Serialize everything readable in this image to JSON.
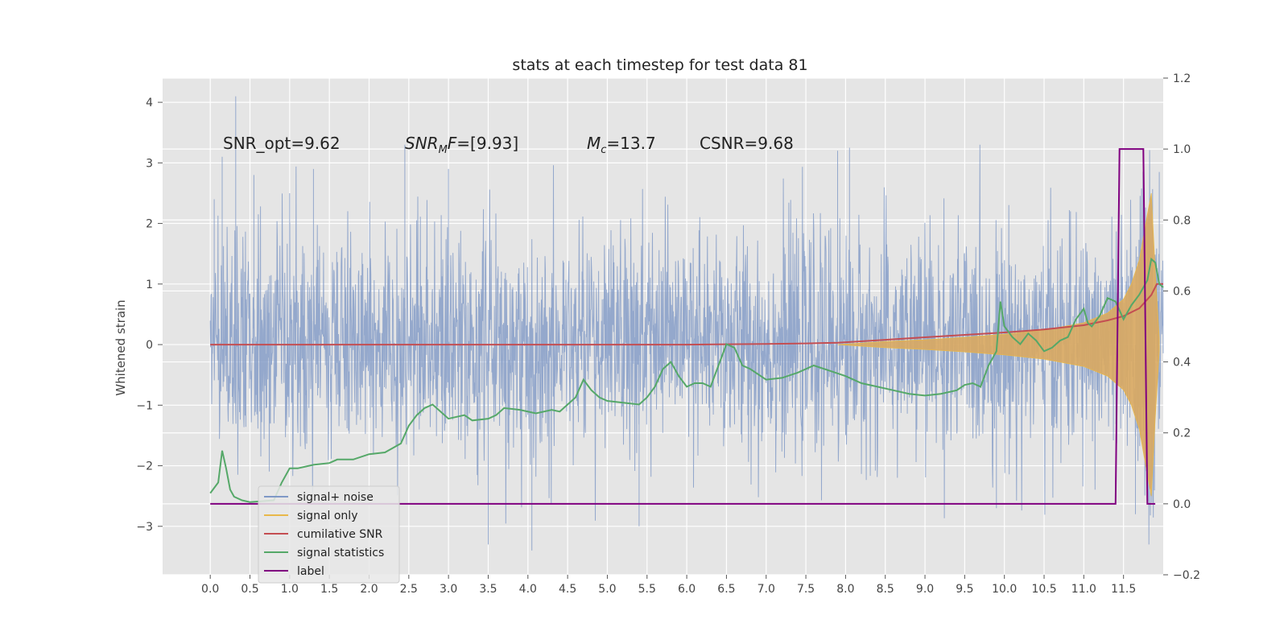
{
  "chart_data": {
    "type": "line",
    "title": "stats at each timestep for test data 81",
    "ylabel": "Whitened strain",
    "xlabel": "",
    "xlim": [
      -0.6,
      12.0
    ],
    "ylim": [
      -3.8,
      4.4
    ],
    "y2lim": [
      -0.2,
      1.2
    ],
    "xticks": [
      "0.0",
      "0.5",
      "1.0",
      "1.5",
      "2.0",
      "2.5",
      "3.0",
      "3.5",
      "4.0",
      "4.5",
      "5.0",
      "5.5",
      "6.0",
      "6.5",
      "7.0",
      "7.5",
      "8.0",
      "8.5",
      "9.0",
      "9.5",
      "10.0",
      "10.5",
      "11.0",
      "11.5"
    ],
    "yticks": [
      "4",
      "3",
      "2",
      "1",
      "0",
      "−1",
      "−2",
      "−3"
    ],
    "y2ticks": [
      "1.2",
      "1.0",
      "0.8",
      "0.6",
      "0.4",
      "0.2",
      "0.0",
      "−0.2"
    ],
    "grid": true,
    "legend_position": "lower-left",
    "annotations": [
      {
        "text": "SNR_opt=9.62",
        "italic": false
      },
      {
        "text": "SNR_MF=[9.93]",
        "italic": true
      },
      {
        "text": "M_c=13.7",
        "italic": true
      },
      {
        "text": "CSNR=9.68",
        "italic": false
      }
    ],
    "series": [
      {
        "name": "signal+ noise",
        "color": "#7f99c6",
        "axis": "left",
        "x_range": [
          0,
          12.0
        ],
        "typical_band": [
          -1.0,
          1.0
        ],
        "peaks": [
          [
            0.05,
            2.4
          ],
          [
            0.15,
            3.1
          ],
          [
            0.32,
            4.1
          ],
          [
            0.55,
            2.8
          ],
          [
            1.0,
            2.5
          ],
          [
            1.3,
            2.9
          ],
          [
            2.45,
            3.3
          ],
          [
            3.0,
            2.9
          ],
          [
            3.5,
            -3.3
          ],
          [
            4.05,
            -3.4
          ],
          [
            5.4,
            -3.0
          ],
          [
            6.0,
            1.05
          ],
          [
            7.9,
            3.2
          ],
          [
            8.05,
            3.25
          ],
          [
            9.9,
            -2.7
          ],
          [
            11.65,
            -2.8
          ],
          [
            11.85,
            2.4
          ],
          [
            11.95,
            2.85
          ]
        ]
      },
      {
        "name": "signal only",
        "color": "#e8b84a",
        "fill_color": "#d9a860",
        "axis": "left",
        "envelope": [
          [
            7.9,
            0.0
          ],
          [
            8.5,
            0.05
          ],
          [
            9.0,
            0.08
          ],
          [
            9.5,
            0.12
          ],
          [
            10.0,
            0.17
          ],
          [
            10.5,
            0.24
          ],
          [
            11.0,
            0.36
          ],
          [
            11.3,
            0.52
          ],
          [
            11.5,
            0.75
          ],
          [
            11.6,
            1.0
          ],
          [
            11.7,
            1.4
          ],
          [
            11.78,
            2.0
          ],
          [
            11.85,
            2.5
          ],
          [
            11.9,
            1.2
          ],
          [
            11.95,
            0.1
          ]
        ]
      },
      {
        "name": "cumilative SNR",
        "color": "#c44e52",
        "axis": "left",
        "points": [
          [
            0,
            0
          ],
          [
            2,
            0
          ],
          [
            4,
            0
          ],
          [
            6,
            0
          ],
          [
            7,
            0.01
          ],
          [
            7.5,
            0.02
          ],
          [
            7.9,
            0.03
          ],
          [
            8.5,
            0.08
          ],
          [
            9,
            0.12
          ],
          [
            9.5,
            0.16
          ],
          [
            10,
            0.2
          ],
          [
            10.5,
            0.25
          ],
          [
            11,
            0.32
          ],
          [
            11.3,
            0.4
          ],
          [
            11.5,
            0.47
          ],
          [
            11.7,
            0.6
          ],
          [
            11.85,
            0.82
          ],
          [
            11.92,
            1.0
          ],
          [
            12.0,
            1.0
          ]
        ]
      },
      {
        "name": "signal statistics",
        "color": "#55a868",
        "axis": "right",
        "points": [
          [
            0,
            0.03
          ],
          [
            0.1,
            0.06
          ],
          [
            0.15,
            0.15
          ],
          [
            0.2,
            0.1
          ],
          [
            0.25,
            0.04
          ],
          [
            0.3,
            0.02
          ],
          [
            0.4,
            0.01
          ],
          [
            0.5,
            0.005
          ],
          [
            0.8,
            0.01
          ],
          [
            0.9,
            0.06
          ],
          [
            1.0,
            0.1
          ],
          [
            1.1,
            0.1
          ],
          [
            1.3,
            0.11
          ],
          [
            1.5,
            0.115
          ],
          [
            1.6,
            0.125
          ],
          [
            1.8,
            0.125
          ],
          [
            2.0,
            0.14
          ],
          [
            2.2,
            0.145
          ],
          [
            2.4,
            0.17
          ],
          [
            2.5,
            0.22
          ],
          [
            2.6,
            0.25
          ],
          [
            2.7,
            0.27
          ],
          [
            2.8,
            0.28
          ],
          [
            3.0,
            0.24
          ],
          [
            3.2,
            0.25
          ],
          [
            3.3,
            0.235
          ],
          [
            3.5,
            0.24
          ],
          [
            3.6,
            0.25
          ],
          [
            3.7,
            0.27
          ],
          [
            3.9,
            0.265
          ],
          [
            4.1,
            0.255
          ],
          [
            4.3,
            0.265
          ],
          [
            4.4,
            0.26
          ],
          [
            4.5,
            0.28
          ],
          [
            4.6,
            0.3
          ],
          [
            4.7,
            0.35
          ],
          [
            4.8,
            0.32
          ],
          [
            4.9,
            0.3
          ],
          [
            5.0,
            0.29
          ],
          [
            5.2,
            0.285
          ],
          [
            5.4,
            0.28
          ],
          [
            5.5,
            0.3
          ],
          [
            5.6,
            0.33
          ],
          [
            5.7,
            0.38
          ],
          [
            5.8,
            0.4
          ],
          [
            5.9,
            0.36
          ],
          [
            6.0,
            0.33
          ],
          [
            6.1,
            0.34
          ],
          [
            6.2,
            0.34
          ],
          [
            6.3,
            0.33
          ],
          [
            6.5,
            0.45
          ],
          [
            6.6,
            0.44
          ],
          [
            6.7,
            0.39
          ],
          [
            6.8,
            0.38
          ],
          [
            7.0,
            0.35
          ],
          [
            7.2,
            0.355
          ],
          [
            7.4,
            0.37
          ],
          [
            7.6,
            0.39
          ],
          [
            7.8,
            0.375
          ],
          [
            8.0,
            0.36
          ],
          [
            8.2,
            0.34
          ],
          [
            8.4,
            0.33
          ],
          [
            8.6,
            0.32
          ],
          [
            8.8,
            0.31
          ],
          [
            9.0,
            0.305
          ],
          [
            9.2,
            0.31
          ],
          [
            9.4,
            0.32
          ],
          [
            9.5,
            0.335
          ],
          [
            9.6,
            0.34
          ],
          [
            9.7,
            0.33
          ],
          [
            9.8,
            0.39
          ],
          [
            9.9,
            0.43
          ],
          [
            9.95,
            0.57
          ],
          [
            10.0,
            0.5
          ],
          [
            10.1,
            0.47
          ],
          [
            10.2,
            0.45
          ],
          [
            10.3,
            0.48
          ],
          [
            10.4,
            0.46
          ],
          [
            10.5,
            0.43
          ],
          [
            10.6,
            0.44
          ],
          [
            10.7,
            0.46
          ],
          [
            10.8,
            0.47
          ],
          [
            10.9,
            0.52
          ],
          [
            11.0,
            0.55
          ],
          [
            11.05,
            0.51
          ],
          [
            11.1,
            0.5
          ],
          [
            11.2,
            0.53
          ],
          [
            11.3,
            0.58
          ],
          [
            11.4,
            0.57
          ],
          [
            11.5,
            0.52
          ],
          [
            11.6,
            0.56
          ],
          [
            11.7,
            0.59
          ],
          [
            11.8,
            0.63
          ],
          [
            11.85,
            0.69
          ],
          [
            11.9,
            0.68
          ],
          [
            11.95,
            0.62
          ],
          [
            12.0,
            0.61
          ]
        ]
      },
      {
        "name": "label",
        "color": "#800080",
        "axis": "right",
        "points": [
          [
            0,
            0
          ],
          [
            11.4,
            0
          ],
          [
            11.45,
            1.0
          ],
          [
            11.75,
            1.0
          ],
          [
            11.8,
            0
          ],
          [
            11.9,
            0
          ]
        ]
      }
    ]
  }
}
